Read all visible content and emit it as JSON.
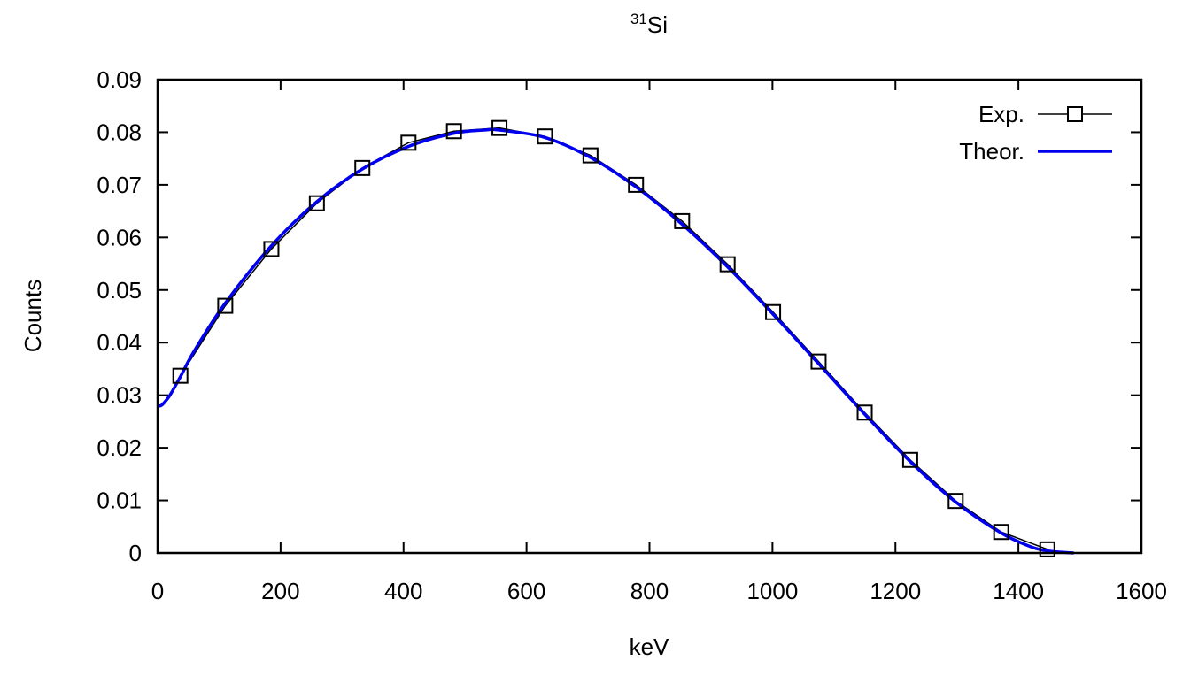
{
  "chart_data": {
    "type": "line",
    "title": {
      "superscript": "31",
      "text": "Si"
    },
    "xlabel": "keV",
    "ylabel": "Counts",
    "xlim": [
      0,
      1600
    ],
    "ylim": [
      0,
      0.09
    ],
    "xticks": [
      "0",
      "200",
      "400",
      "600",
      "800",
      "1000",
      "1200",
      "1400",
      "1600"
    ],
    "yticks": [
      "0",
      "0.01",
      "0.02",
      "0.03",
      "0.04",
      "0.05",
      "0.06",
      "0.07",
      "0.08",
      "0.09"
    ],
    "grid": false,
    "legend_position": "top-right",
    "series": [
      {
        "name": "Exp.",
        "style": "points with line, open square markers",
        "color": "#000000",
        "x": [
          37,
          110,
          185,
          259,
          333,
          408,
          482,
          556,
          630,
          704,
          778,
          853,
          927,
          1001,
          1075,
          1150,
          1224,
          1298,
          1372,
          1447
        ],
        "y": [
          0.0337,
          0.047,
          0.0578,
          0.0665,
          0.0732,
          0.078,
          0.0802,
          0.0808,
          0.0792,
          0.0756,
          0.07,
          0.0631,
          0.0549,
          0.0458,
          0.0364,
          0.0267,
          0.0177,
          0.0099,
          0.004,
          0.0007
        ]
      },
      {
        "name": "Theor.",
        "style": "solid line",
        "color": "#0000ee",
        "x": [
          0,
          5,
          10,
          20,
          37,
          60,
          110,
          185,
          259,
          333,
          408,
          482,
          530,
          556,
          630,
          704,
          778,
          853,
          927,
          1001,
          1075,
          1150,
          1224,
          1298,
          1372,
          1420,
          1447,
          1475,
          1490
        ],
        "y": [
          0.028,
          0.028,
          0.0285,
          0.03,
          0.0335,
          0.0385,
          0.0475,
          0.0584,
          0.0668,
          0.073,
          0.0773,
          0.0798,
          0.0804,
          0.0804,
          0.079,
          0.0752,
          0.0696,
          0.0625,
          0.0544,
          0.0454,
          0.036,
          0.0264,
          0.0174,
          0.0097,
          0.0038,
          0.0012,
          0.0004,
          0.0001,
          0.0
        ]
      }
    ]
  }
}
